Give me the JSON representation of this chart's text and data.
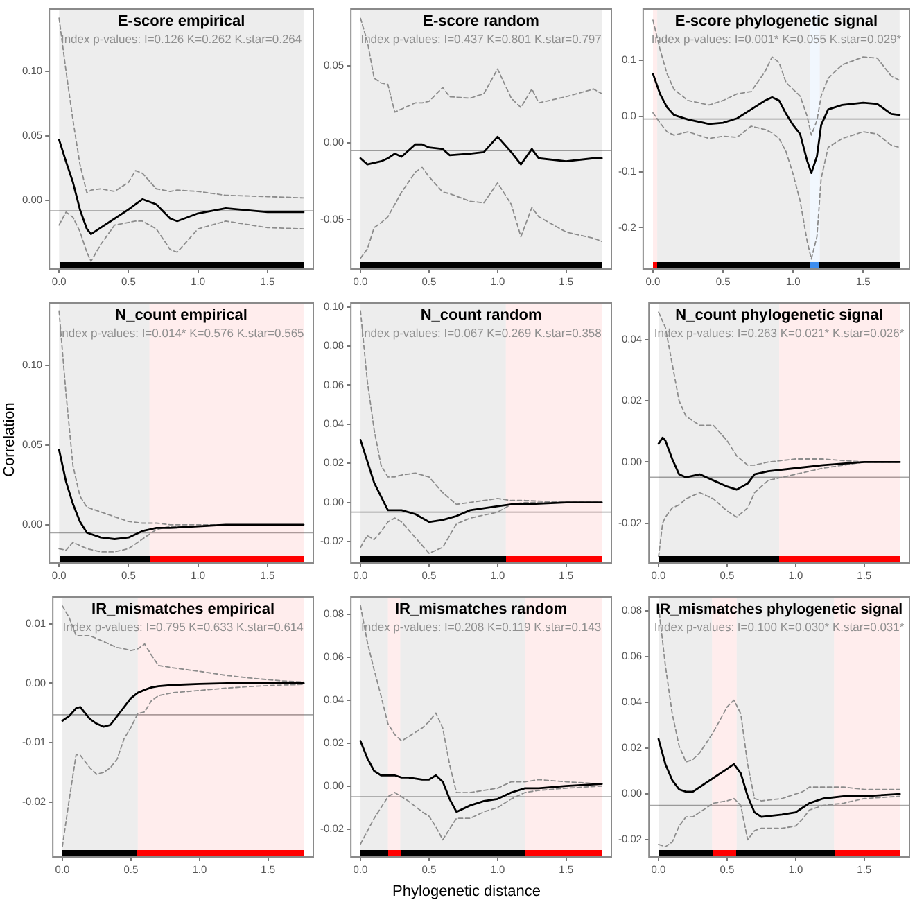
{
  "chart_data": [
    {
      "type": "line",
      "title": "E-score empirical",
      "subtitle": "Index p-values: I=0.126 K=0.262 K.star=0.264",
      "marker": "none",
      "x": [
        0,
        0.05,
        0.1,
        0.15,
        0.2,
        0.23,
        0.3,
        0.4,
        0.5,
        0.55,
        0.6,
        0.7,
        0.8,
        0.85,
        1.0,
        1.2,
        1.5,
        1.76
      ],
      "series": [
        {
          "color": "#000000",
          "line_style": "solid",
          "values": [
            0.047,
            0.03,
            0.014,
            -0.007,
            -0.022,
            -0.026,
            -0.021,
            -0.014,
            -0.007,
            -0.003,
            0.001,
            -0.003,
            -0.014,
            -0.016,
            -0.01,
            -0.006,
            -0.009,
            -0.009
          ]
        },
        {
          "color": "#8c8c8c",
          "line_style": "dashed",
          "values": [
            0.141,
            0.1,
            0.062,
            0.028,
            0.006,
            0.008,
            0.009,
            0.007,
            0.014,
            0.023,
            0.021,
            0.009,
            0.007,
            0.008,
            0.007,
            0.004,
            0.003,
            0.002
          ]
        },
        {
          "color": "#8c8c8c",
          "line_style": "dashed",
          "values": [
            -0.019,
            -0.009,
            -0.013,
            -0.024,
            -0.04,
            -0.047,
            -0.034,
            -0.019,
            -0.017,
            -0.016,
            -0.016,
            -0.022,
            -0.038,
            -0.04,
            -0.022,
            -0.016,
            -0.021,
            -0.022
          ]
        }
      ],
      "xlim": [
        -0.07,
        1.83
      ],
      "ylim": [
        -0.053,
        0.148
      ],
      "xticks": [
        {
          "value": 0,
          "label": "0.0"
        },
        {
          "value": 0.5,
          "label": "0.5"
        },
        {
          "value": 1,
          "label": "1.0"
        },
        {
          "value": 1.5,
          "label": "1.5"
        }
      ],
      "yticks": [
        {
          "value": 0,
          "label": "0.00"
        },
        {
          "value": 0.05,
          "label": "0.05"
        },
        {
          "value": 0.1,
          "label": "0.10"
        }
      ],
      "ref_lines": [
        {
          "axis": "y",
          "value": -0.008,
          "color": "#a6a6a6"
        }
      ],
      "bands": [
        {
          "axis": "x",
          "from": 0,
          "to": 1.76,
          "color": "#000000"
        }
      ]
    },
    {
      "type": "line",
      "title": "E-score random",
      "subtitle": "Index p-values: I=0.437 K=0.801 K.star=0.797",
      "marker": "none",
      "x": [
        0,
        0.05,
        0.1,
        0.15,
        0.2,
        0.25,
        0.3,
        0.4,
        0.45,
        0.5,
        0.6,
        0.65,
        0.8,
        0.9,
        1.0,
        1.1,
        1.17,
        1.25,
        1.3,
        1.5,
        1.7,
        1.76
      ],
      "series": [
        {
          "color": "#000000",
          "line_style": "solid",
          "values": [
            -0.01,
            -0.014,
            -0.013,
            -0.012,
            -0.01,
            -0.007,
            -0.009,
            -0.001,
            -0.001,
            -0.003,
            -0.004,
            -0.008,
            -0.007,
            -0.006,
            0.004,
            -0.006,
            -0.014,
            -0.004,
            -0.01,
            -0.012,
            -0.01,
            -0.01
          ]
        },
        {
          "color": "#8c8c8c",
          "line_style": "dashed",
          "values": [
            0.081,
            0.066,
            0.042,
            0.039,
            0.038,
            0.02,
            0.022,
            0.026,
            0.026,
            0.027,
            0.036,
            0.03,
            0.029,
            0.032,
            0.048,
            0.029,
            0.023,
            0.035,
            0.026,
            0.03,
            0.035,
            0.032
          ]
        },
        {
          "color": "#8c8c8c",
          "line_style": "dashed",
          "values": [
            -0.075,
            -0.069,
            -0.055,
            -0.052,
            -0.048,
            -0.04,
            -0.032,
            -0.019,
            -0.016,
            -0.022,
            -0.032,
            -0.033,
            -0.038,
            -0.039,
            -0.026,
            -0.04,
            -0.061,
            -0.042,
            -0.048,
            -0.058,
            -0.062,
            -0.064
          ]
        }
      ],
      "xlim": [
        -0.07,
        1.83
      ],
      "ylim": [
        -0.082,
        0.087
      ],
      "xticks": [
        {
          "value": 0,
          "label": "0.0"
        },
        {
          "value": 0.5,
          "label": "0.5"
        },
        {
          "value": 1,
          "label": "1.0"
        },
        {
          "value": 1.5,
          "label": "1.5"
        }
      ],
      "yticks": [
        {
          "value": -0.05,
          "label": "-0.05"
        },
        {
          "value": 0,
          "label": "0.00"
        },
        {
          "value": 0.05,
          "label": "0.05"
        }
      ],
      "ref_lines": [
        {
          "axis": "y",
          "value": -0.005,
          "color": "#a6a6a6"
        }
      ],
      "bands": [
        {
          "axis": "x",
          "from": 0,
          "to": 1.76,
          "color": "#000000"
        }
      ]
    },
    {
      "type": "line",
      "title": "E-score phylogenetic signal",
      "subtitle": "Index p-values: I=0.001* K=0.055 K.star=0.029*",
      "marker": "none",
      "x": [
        0,
        0.05,
        0.1,
        0.15,
        0.25,
        0.4,
        0.5,
        0.6,
        0.7,
        0.8,
        0.85,
        0.9,
        0.95,
        1.0,
        1.05,
        1.1,
        1.13,
        1.17,
        1.2,
        1.25,
        1.35,
        1.5,
        1.6,
        1.7,
        1.76
      ],
      "series": [
        {
          "color": "#000000",
          "line_style": "solid",
          "values": [
            0.076,
            0.04,
            0.016,
            0.002,
            -0.006,
            -0.014,
            -0.012,
            -0.004,
            0.012,
            0.028,
            0.034,
            0.028,
            0.004,
            -0.016,
            -0.032,
            -0.08,
            -0.102,
            -0.072,
            -0.016,
            0.012,
            0.02,
            0.024,
            0.022,
            0.004,
            0.002
          ]
        },
        {
          "color": "#8c8c8c",
          "line_style": "dashed",
          "values": [
            0.172,
            0.12,
            0.076,
            0.048,
            0.028,
            0.02,
            0.028,
            0.04,
            0.044,
            0.08,
            0.106,
            0.096,
            0.06,
            0.048,
            0.036,
            0.0,
            -0.034,
            -0.008,
            0.036,
            0.068,
            0.092,
            0.106,
            0.104,
            0.072,
            0.064
          ]
        },
        {
          "color": "#8c8c8c",
          "line_style": "dashed",
          "values": [
            0.006,
            -0.012,
            -0.028,
            -0.034,
            -0.028,
            -0.04,
            -0.036,
            -0.038,
            -0.018,
            -0.024,
            -0.03,
            -0.04,
            -0.064,
            -0.104,
            -0.152,
            -0.224,
            -0.256,
            -0.216,
            -0.112,
            -0.056,
            -0.04,
            -0.028,
            -0.032,
            -0.052,
            -0.056
          ]
        }
      ],
      "xlim": [
        -0.07,
        1.83
      ],
      "ylim": [
        -0.274,
        0.192
      ],
      "xticks": [
        {
          "value": 0,
          "label": "0.0"
        },
        {
          "value": 0.5,
          "label": "0.5"
        },
        {
          "value": 1,
          "label": "1.0"
        },
        {
          "value": 1.5,
          "label": "1.5"
        }
      ],
      "yticks": [
        {
          "value": -0.2,
          "label": "-0.2"
        },
        {
          "value": -0.1,
          "label": "-0.1"
        },
        {
          "value": 0,
          "label": "0.0"
        },
        {
          "value": 0.1,
          "label": "0.1"
        }
      ],
      "ref_lines": [
        {
          "axis": "y",
          "value": -0.005,
          "color": "#a6a6a6"
        }
      ],
      "bands": [
        {
          "axis": "x",
          "from": 0,
          "to": 0.03,
          "color": "#ff0000"
        },
        {
          "axis": "x",
          "from": 0.03,
          "to": 1.12,
          "color": "#000000"
        },
        {
          "axis": "x",
          "from": 1.12,
          "to": 1.19,
          "color": "#3d8ef0"
        },
        {
          "axis": "x",
          "from": 1.19,
          "to": 1.76,
          "color": "#000000"
        }
      ]
    },
    {
      "type": "line",
      "title": "N_count empirical",
      "subtitle": "Index p-values: I=0.014* K=0.576 K.star=0.565",
      "ylabel": "Correlation",
      "marker": "none",
      "x": [
        0,
        0.05,
        0.1,
        0.15,
        0.2,
        0.3,
        0.4,
        0.5,
        0.6,
        0.7,
        0.8,
        1.0,
        1.2,
        1.5,
        1.76
      ],
      "series": [
        {
          "color": "#000000",
          "line_style": "solid",
          "values": [
            0.047,
            0.027,
            0.013,
            0.002,
            -0.005,
            -0.008,
            -0.009,
            -0.008,
            -0.004,
            -0.002,
            -0.002,
            -0.001,
            0,
            0,
            0
          ]
        },
        {
          "color": "#8c8c8c",
          "line_style": "dashed",
          "values": [
            0.134,
            0.082,
            0.037,
            0.018,
            0.011,
            0.008,
            0.005,
            0.002,
            0.001,
            0.001,
            0,
            0,
            0,
            0,
            0
          ]
        },
        {
          "color": "#8c8c8c",
          "line_style": "dashed",
          "values": [
            -0.015,
            -0.016,
            -0.011,
            -0.013,
            -0.015,
            -0.017,
            -0.017,
            -0.015,
            -0.009,
            -0.003,
            -0.001,
            -0.001,
            0,
            0,
            0
          ]
        }
      ],
      "xlim": [
        -0.07,
        1.83
      ],
      "ylim": [
        -0.024,
        0.139
      ],
      "xticks": [
        {
          "value": 0,
          "label": "0.0"
        },
        {
          "value": 0.5,
          "label": "0.5"
        },
        {
          "value": 1,
          "label": "1.0"
        },
        {
          "value": 1.5,
          "label": "1.5"
        }
      ],
      "yticks": [
        {
          "value": 0,
          "label": "0.00"
        },
        {
          "value": 0.05,
          "label": "0.05"
        },
        {
          "value": 0.1,
          "label": "0.10"
        }
      ],
      "ref_lines": [
        {
          "axis": "y",
          "value": -0.005,
          "color": "#a6a6a6"
        }
      ],
      "bands": [
        {
          "axis": "x",
          "from": 0,
          "to": 0.65,
          "color": "#000000"
        },
        {
          "axis": "x",
          "from": 0.65,
          "to": 1.76,
          "color": "#ff0000"
        }
      ]
    },
    {
      "type": "line",
      "title": "N_count random",
      "subtitle": "Index p-values: I=0.067 K=0.269 K.star=0.358",
      "marker": "none",
      "x": [
        0,
        0.05,
        0.1,
        0.15,
        0.2,
        0.25,
        0.3,
        0.4,
        0.5,
        0.6,
        0.7,
        0.8,
        1.0,
        1.1,
        1.2,
        1.5,
        1.76
      ],
      "series": [
        {
          "color": "#000000",
          "line_style": "solid",
          "values": [
            0.032,
            0.021,
            0.01,
            0.003,
            -0.004,
            -0.004,
            -0.004,
            -0.006,
            -0.01,
            -0.009,
            -0.007,
            -0.004,
            -0.002,
            -0.001,
            -0.001,
            0,
            0
          ]
        },
        {
          "color": "#8c8c8c",
          "line_style": "dashed",
          "values": [
            0.098,
            0.062,
            0.037,
            0.019,
            0.013,
            0.013,
            0.014,
            0.015,
            0.013,
            0.005,
            -0.001,
            0,
            0.002,
            0.001,
            0.001,
            0,
            0
          ]
        },
        {
          "color": "#8c8c8c",
          "line_style": "dashed",
          "values": [
            -0.023,
            -0.017,
            -0.019,
            -0.015,
            -0.01,
            -0.008,
            -0.01,
            -0.018,
            -0.026,
            -0.023,
            -0.011,
            -0.008,
            -0.005,
            -0.001,
            0,
            0,
            0
          ]
        }
      ],
      "xlim": [
        -0.07,
        1.83
      ],
      "ylim": [
        -0.031,
        0.102
      ],
      "xticks": [
        {
          "value": 0,
          "label": "0.0"
        },
        {
          "value": 0.5,
          "label": "0.5"
        },
        {
          "value": 1,
          "label": "1.0"
        },
        {
          "value": 1.5,
          "label": "1.5"
        }
      ],
      "yticks": [
        {
          "value": -0.02,
          "label": "-0.02"
        },
        {
          "value": 0,
          "label": "0.00"
        },
        {
          "value": 0.02,
          "label": "0.02"
        },
        {
          "value": 0.04,
          "label": "0.04"
        },
        {
          "value": 0.06,
          "label": "0.06"
        },
        {
          "value": 0.08,
          "label": "0.08"
        },
        {
          "value": 0.1,
          "label": "0.10"
        }
      ],
      "ref_lines": [
        {
          "axis": "y",
          "value": -0.005,
          "color": "#a6a6a6"
        }
      ],
      "bands": [
        {
          "axis": "x",
          "from": 0,
          "to": 1.06,
          "color": "#000000"
        },
        {
          "axis": "x",
          "from": 1.06,
          "to": 1.76,
          "color": "#ff0000"
        }
      ]
    },
    {
      "type": "line",
      "title": "N_count phylogenetic signal",
      "subtitle": "Index p-values: I=0.263 K=0.021* K.star=0.026*",
      "marker": "none",
      "x": [
        0,
        0.03,
        0.05,
        0.1,
        0.15,
        0.2,
        0.3,
        0.4,
        0.5,
        0.57,
        0.65,
        0.7,
        0.8,
        1.0,
        1.2,
        1.5,
        1.76
      ],
      "series": [
        {
          "color": "#000000",
          "line_style": "solid",
          "values": [
            0.006,
            0.008,
            0.007,
            0.001,
            -0.004,
            -0.005,
            -0.004,
            -0.006,
            -0.008,
            -0.009,
            -0.007,
            -0.004,
            -0.003,
            -0.002,
            -0.001,
            0,
            0
          ]
        },
        {
          "color": "#8c8c8c",
          "line_style": "dashed",
          "values": [
            0.049,
            0.046,
            0.044,
            0.032,
            0.02,
            0.015,
            0.012,
            0.012,
            0.007,
            0.002,
            -0.001,
            -0.001,
            0,
            0.001,
            0.001,
            0,
            0
          ]
        },
        {
          "color": "#8c8c8c",
          "line_style": "dashed",
          "values": [
            -0.031,
            -0.02,
            -0.018,
            -0.015,
            -0.014,
            -0.012,
            -0.01,
            -0.012,
            -0.016,
            -0.018,
            -0.015,
            -0.01,
            -0.006,
            -0.004,
            -0.002,
            0,
            0
          ]
        }
      ],
      "xlim": [
        -0.07,
        1.83
      ],
      "ylim": [
        -0.033,
        0.052
      ],
      "xticks": [
        {
          "value": 0,
          "label": "0.0"
        },
        {
          "value": 0.5,
          "label": "0.5"
        },
        {
          "value": 1,
          "label": "1.0"
        },
        {
          "value": 1.5,
          "label": "1.5"
        }
      ],
      "yticks": [
        {
          "value": -0.02,
          "label": "-0.02"
        },
        {
          "value": 0,
          "label": "0.00"
        },
        {
          "value": 0.02,
          "label": "0.02"
        },
        {
          "value": 0.04,
          "label": "0.04"
        }
      ],
      "ref_lines": [
        {
          "axis": "y",
          "value": -0.005,
          "color": "#a6a6a6"
        }
      ],
      "bands": [
        {
          "axis": "x",
          "from": 0,
          "to": 0.88,
          "color": "#000000"
        },
        {
          "axis": "x",
          "from": 0.88,
          "to": 1.76,
          "color": "#ff0000"
        }
      ]
    },
    {
      "type": "line",
      "title": "IR_mismatches empirical",
      "subtitle": "Index p-values: I=0.795 K=0.633 K.star=0.614",
      "marker": "none",
      "x": [
        0,
        0.05,
        0.1,
        0.13,
        0.2,
        0.25,
        0.3,
        0.35,
        0.4,
        0.45,
        0.5,
        0.55,
        0.6,
        0.65,
        0.7,
        0.8,
        1.0,
        1.2,
        1.4,
        1.6,
        1.76
      ],
      "series": [
        {
          "color": "#000000",
          "line_style": "solid",
          "values": [
            -0.0063,
            -0.0055,
            -0.0042,
            -0.004,
            -0.006,
            -0.0068,
            -0.0073,
            -0.007,
            -0.0055,
            -0.004,
            -0.0025,
            -0.0016,
            -0.0011,
            -0.0007,
            -0.0005,
            -0.0003,
            -0.0001,
            0,
            0,
            0,
            0
          ]
        },
        {
          "color": "#8c8c8c",
          "line_style": "dashed",
          "values": [
            0.013,
            0.011,
            0.008,
            0.008,
            0.008,
            0.0075,
            0.007,
            0.0065,
            0.006,
            0.0058,
            0.0055,
            0.0058,
            0.0066,
            0.0047,
            0.003,
            0.0026,
            0.002,
            0.0013,
            0.0008,
            0.0004,
            0.0002
          ]
        },
        {
          "color": "#8c8c8c",
          "line_style": "dashed",
          "values": [
            -0.0274,
            -0.0195,
            -0.012,
            -0.0121,
            -0.0142,
            -0.0153,
            -0.015,
            -0.0142,
            -0.0127,
            -0.0093,
            -0.0074,
            -0.0051,
            -0.0048,
            -0.0029,
            -0.0021,
            -0.0016,
            -0.0012,
            -0.0008,
            -0.0005,
            -0.0003,
            -0.0002
          ]
        }
      ],
      "xlim": [
        -0.07,
        1.83
      ],
      "ylim": [
        -0.0292,
        0.0145
      ],
      "xticks": [
        {
          "value": 0,
          "label": "0.0"
        },
        {
          "value": 0.5,
          "label": "0.5"
        },
        {
          "value": 1,
          "label": "1.0"
        },
        {
          "value": 1.5,
          "label": "1.5"
        }
      ],
      "yticks": [
        {
          "value": -0.02,
          "label": "-0.02"
        },
        {
          "value": -0.01,
          "label": "-0.01"
        },
        {
          "value": 0,
          "label": "0.00"
        },
        {
          "value": 0.01,
          "label": "0.01"
        }
      ],
      "ref_lines": [
        {
          "axis": "y",
          "value": -0.0053,
          "color": "#a6a6a6"
        }
      ],
      "bands": [
        {
          "axis": "x",
          "from": 0,
          "to": 0.55,
          "color": "#000000"
        },
        {
          "axis": "x",
          "from": 0.55,
          "to": 1.76,
          "color": "#ff0000"
        }
      ]
    },
    {
      "type": "line",
      "title": "IR_mismatches random",
      "subtitle": "Index p-values: I=0.208 K=0.119 K.star=0.143",
      "xlabel": "Phylogenetic distance",
      "marker": "none",
      "x": [
        0,
        0.05,
        0.1,
        0.15,
        0.2,
        0.25,
        0.3,
        0.35,
        0.45,
        0.5,
        0.55,
        0.6,
        0.65,
        0.7,
        0.8,
        0.9,
        1.0,
        1.1,
        1.2,
        1.3,
        1.5,
        1.76
      ],
      "series": [
        {
          "color": "#000000",
          "line_style": "solid",
          "values": [
            0.021,
            0.013,
            0.007,
            0.005,
            0.005,
            0.005,
            0.004,
            0.004,
            0.003,
            0.003,
            0.005,
            0.002,
            -0.006,
            -0.012,
            -0.009,
            -0.007,
            -0.006,
            -0.003,
            -0.001,
            -0.001,
            0,
            0.001
          ]
        },
        {
          "color": "#8c8c8c",
          "line_style": "dashed",
          "values": [
            0.084,
            0.067,
            0.054,
            0.042,
            0.029,
            0.024,
            0.021,
            0.023,
            0.027,
            0.03,
            0.034,
            0.027,
            0.01,
            -0.003,
            -0.003,
            -0.002,
            -0.001,
            0.002,
            0.002,
            0.003,
            0.002,
            0.001
          ]
        },
        {
          "color": "#8c8c8c",
          "line_style": "dashed",
          "values": [
            -0.027,
            -0.021,
            -0.015,
            -0.01,
            -0.005,
            -0.003,
            -0.005,
            -0.007,
            -0.012,
            -0.014,
            -0.019,
            -0.025,
            -0.02,
            -0.015,
            -0.015,
            -0.012,
            -0.01,
            -0.006,
            -0.003,
            -0.002,
            -0.001,
            0
          ]
        }
      ],
      "xlim": [
        -0.07,
        1.83
      ],
      "ylim": [
        -0.033,
        0.088
      ],
      "xticks": [
        {
          "value": 0,
          "label": "0.0"
        },
        {
          "value": 0.5,
          "label": "0.5"
        },
        {
          "value": 1,
          "label": "1.0"
        },
        {
          "value": 1.5,
          "label": "1.5"
        }
      ],
      "yticks": [
        {
          "value": -0.02,
          "label": "-0.02"
        },
        {
          "value": 0,
          "label": "0.00"
        },
        {
          "value": 0.02,
          "label": "0.02"
        },
        {
          "value": 0.04,
          "label": "0.04"
        },
        {
          "value": 0.06,
          "label": "0.06"
        },
        {
          "value": 0.08,
          "label": "0.08"
        }
      ],
      "ref_lines": [
        {
          "axis": "y",
          "value": -0.005,
          "color": "#a6a6a6"
        }
      ],
      "bands": [
        {
          "axis": "x",
          "from": 0,
          "to": 0.2,
          "color": "#000000"
        },
        {
          "axis": "x",
          "from": 0.2,
          "to": 0.29,
          "color": "#ff0000"
        },
        {
          "axis": "x",
          "from": 0.29,
          "to": 1.2,
          "color": "#000000"
        },
        {
          "axis": "x",
          "from": 1.2,
          "to": 1.76,
          "color": "#ff0000"
        }
      ]
    },
    {
      "type": "line",
      "title": "IR_mismatches phylogenetic signal",
      "subtitle": "Index p-values: I=0.100 K=0.030* K.star=0.031*",
      "marker": "none",
      "x": [
        0,
        0.05,
        0.1,
        0.15,
        0.2,
        0.25,
        0.3,
        0.4,
        0.5,
        0.55,
        0.6,
        0.65,
        0.7,
        0.75,
        0.9,
        1.0,
        1.05,
        1.1,
        1.2,
        1.35,
        1.5,
        1.76
      ],
      "series": [
        {
          "color": "#000000",
          "line_style": "solid",
          "values": [
            0.024,
            0.013,
            0.006,
            0.002,
            0.001,
            0.001,
            0.003,
            0.007,
            0.011,
            0.013,
            0.009,
            -0.001,
            -0.008,
            -0.01,
            -0.009,
            -0.008,
            -0.006,
            -0.004,
            -0.002,
            -0.001,
            -0.001,
            0
          ]
        },
        {
          "color": "#8c8c8c",
          "line_style": "dashed",
          "values": [
            0.082,
            0.056,
            0.035,
            0.021,
            0.014,
            0.015,
            0.018,
            0.027,
            0.038,
            0.041,
            0.035,
            0.013,
            -0.002,
            -0.003,
            -0.002,
            0,
            0.001,
            0.003,
            0.003,
            0.003,
            0.002,
            0.002
          ]
        },
        {
          "color": "#8c8c8c",
          "line_style": "dashed",
          "values": [
            -0.022,
            -0.023,
            -0.021,
            -0.014,
            -0.01,
            -0.01,
            -0.008,
            -0.004,
            -0.003,
            -0.002,
            -0.005,
            -0.02,
            -0.016,
            -0.015,
            -0.015,
            -0.014,
            -0.011,
            -0.007,
            -0.005,
            -0.004,
            -0.002,
            -0.001
          ]
        }
      ],
      "xlim": [
        -0.07,
        1.83
      ],
      "ylim": [
        -0.0275,
        0.086
      ],
      "xticks": [
        {
          "value": 0,
          "label": "0.0"
        },
        {
          "value": 0.5,
          "label": "0.5"
        },
        {
          "value": 1,
          "label": "1.0"
        },
        {
          "value": 1.5,
          "label": "1.5"
        }
      ],
      "yticks": [
        {
          "value": -0.02,
          "label": "-0.02"
        },
        {
          "value": 0,
          "label": "0.00"
        },
        {
          "value": 0.02,
          "label": "0.02"
        },
        {
          "value": 0.04,
          "label": "0.04"
        },
        {
          "value": 0.06,
          "label": "0.06"
        },
        {
          "value": 0.08,
          "label": "0.08"
        }
      ],
      "ref_lines": [
        {
          "axis": "y",
          "value": -0.005,
          "color": "#a6a6a6"
        }
      ],
      "bands": [
        {
          "axis": "x",
          "from": 0,
          "to": 0.39,
          "color": "#000000"
        },
        {
          "axis": "x",
          "from": 0.39,
          "to": 0.57,
          "color": "#ff0000"
        },
        {
          "axis": "x",
          "from": 0.57,
          "to": 1.28,
          "color": "#000000"
        },
        {
          "axis": "x",
          "from": 1.28,
          "to": 1.76,
          "color": "#ff0000"
        }
      ]
    }
  ]
}
